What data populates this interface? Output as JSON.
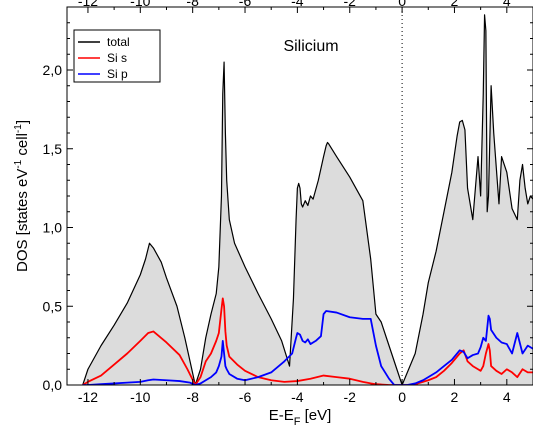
{
  "chart_data": {
    "type": "area",
    "title": "Silicium",
    "xlabel": "E-E",
    "xlabel_sub": "F",
    "xlabel_unit": " [eV]",
    "ylabel": "DOS [states eV",
    "ylabel_sup1": "-1",
    "ylabel_mid": " cell",
    "ylabel_sup2": "-1",
    "ylabel_end": "]",
    "xlim": [
      -12.8,
      5.0
    ],
    "ylim": [
      0.0,
      2.4
    ],
    "x_ticks": [
      "-12",
      "-10",
      "-8",
      "-6",
      "-4",
      "-2",
      "0",
      "2",
      "4"
    ],
    "y_ticks": [
      "0,0",
      "0,5",
      "1,0",
      "1,5",
      "2,0"
    ],
    "fermi_level": 0,
    "grid": false,
    "legend_position": "top-left",
    "series": [
      {
        "name": "total",
        "color": "#000000",
        "fill": "#dcdcdc",
        "x": [
          -12.2,
          -12.0,
          -11.5,
          -11.0,
          -10.5,
          -10.0,
          -9.8,
          -9.65,
          -9.5,
          -9.2,
          -9.0,
          -8.6,
          -8.3,
          -8.1,
          -7.9,
          -7.7,
          -7.5,
          -7.3,
          -7.1,
          -7.0,
          -6.9,
          -6.85,
          -6.8,
          -6.75,
          -6.7,
          -6.6,
          -6.4,
          -6.0,
          -5.5,
          -5.0,
          -4.6,
          -4.3,
          -4.15,
          -4.05,
          -4.0,
          -3.95,
          -3.9,
          -3.85,
          -3.8,
          -3.7,
          -3.6,
          -3.5,
          -3.4,
          -3.2,
          -3.0,
          -2.9,
          -2.85,
          -2.8,
          -2.5,
          -2.0,
          -1.5,
          -1.2,
          -1.0,
          -0.8,
          -0.6,
          -0.4,
          -0.2,
          0.0,
          0.5,
          0.8,
          1.0,
          1.3,
          1.6,
          1.9,
          2.1,
          2.2,
          2.3,
          2.4,
          2.5,
          2.7,
          2.9,
          3.0,
          3.1,
          3.15,
          3.2,
          3.25,
          3.3,
          3.4,
          3.5,
          3.7,
          3.8,
          4.0,
          4.2,
          4.4,
          4.5,
          4.6,
          4.7,
          4.8,
          4.9,
          5.0
        ],
        "y": [
          0.0,
          0.1,
          0.25,
          0.38,
          0.52,
          0.7,
          0.8,
          0.9,
          0.87,
          0.78,
          0.68,
          0.5,
          0.3,
          0.15,
          0.0,
          0.1,
          0.3,
          0.45,
          0.58,
          0.75,
          1.2,
          1.85,
          2.05,
          1.6,
          1.3,
          1.05,
          0.9,
          0.75,
          0.58,
          0.42,
          0.28,
          0.12,
          0.55,
          1.05,
          1.25,
          1.28,
          1.25,
          1.15,
          1.13,
          1.17,
          1.14,
          1.2,
          1.18,
          1.3,
          1.45,
          1.52,
          1.54,
          1.53,
          1.45,
          1.32,
          1.17,
          0.8,
          0.45,
          0.4,
          0.3,
          0.2,
          0.1,
          0.0,
          0.2,
          0.45,
          0.65,
          0.85,
          1.1,
          1.35,
          1.58,
          1.67,
          1.68,
          1.62,
          1.25,
          1.05,
          1.45,
          1.2,
          1.85,
          2.35,
          2.25,
          1.1,
          1.2,
          1.9,
          1.6,
          1.15,
          1.45,
          1.35,
          1.12,
          1.05,
          1.3,
          1.4,
          1.25,
          1.15,
          1.2,
          1.18
        ]
      },
      {
        "name": "Si s",
        "color": "#ff0000",
        "x": [
          -12.2,
          -12.0,
          -11.5,
          -11.0,
          -10.5,
          -10.0,
          -9.7,
          -9.5,
          -9.0,
          -8.5,
          -8.2,
          -7.9,
          -7.7,
          -7.5,
          -7.3,
          -7.1,
          -7.0,
          -6.9,
          -6.85,
          -6.8,
          -6.75,
          -6.7,
          -6.6,
          -6.3,
          -6.0,
          -5.5,
          -5.0,
          -4.5,
          -4.0,
          -3.5,
          -3.0,
          -2.5,
          -2.0,
          -1.5,
          -1.2,
          -1.0,
          -0.5,
          -0.3,
          0.3,
          0.6,
          1.0,
          1.3,
          1.6,
          1.9,
          2.2,
          2.35,
          2.5,
          2.7,
          2.9,
          3.0,
          3.1,
          3.2,
          3.3,
          3.35,
          3.4,
          3.6,
          3.8,
          4.0,
          4.2,
          4.4,
          4.6,
          4.8,
          5.0
        ],
        "y": [
          0.0,
          0.02,
          0.06,
          0.13,
          0.2,
          0.28,
          0.33,
          0.34,
          0.27,
          0.19,
          0.1,
          0.0,
          0.05,
          0.15,
          0.2,
          0.28,
          0.33,
          0.48,
          0.55,
          0.5,
          0.34,
          0.25,
          0.18,
          0.13,
          0.09,
          0.05,
          0.03,
          0.02,
          0.025,
          0.04,
          0.06,
          0.05,
          0.04,
          0.02,
          0.01,
          0.005,
          0.0,
          0.0,
          0.0,
          0.01,
          0.03,
          0.05,
          0.09,
          0.14,
          0.2,
          0.22,
          0.15,
          0.12,
          0.1,
          0.09,
          0.12,
          0.2,
          0.26,
          0.22,
          0.12,
          0.09,
          0.07,
          0.1,
          0.08,
          0.05,
          0.1,
          0.08,
          0.08
        ]
      },
      {
        "name": "Si p",
        "color": "#0000ff",
        "x": [
          -12.2,
          -12.0,
          -11.5,
          -11.0,
          -10.5,
          -10.0,
          -9.7,
          -9.5,
          -9.0,
          -8.5,
          -8.1,
          -7.9,
          -7.7,
          -7.5,
          -7.3,
          -7.1,
          -7.0,
          -6.9,
          -6.85,
          -6.8,
          -6.75,
          -6.7,
          -6.6,
          -6.3,
          -6.0,
          -5.5,
          -5.0,
          -4.5,
          -4.2,
          -4.05,
          -4.0,
          -3.9,
          -3.8,
          -3.7,
          -3.6,
          -3.5,
          -3.3,
          -3.1,
          -3.0,
          -2.9,
          -2.5,
          -2.0,
          -1.5,
          -1.2,
          -1.0,
          -0.8,
          -0.5,
          -0.3,
          0.2,
          0.5,
          0.8,
          1.0,
          1.3,
          1.6,
          1.9,
          2.2,
          2.35,
          2.5,
          2.7,
          2.9,
          3.0,
          3.1,
          3.2,
          3.3,
          3.35,
          3.4,
          3.6,
          3.8,
          4.0,
          4.2,
          4.4,
          4.6,
          4.8,
          5.0
        ],
        "y": [
          0.0,
          0.0,
          0.005,
          0.01,
          0.015,
          0.02,
          0.03,
          0.035,
          0.03,
          0.025,
          0.015,
          0.0,
          0.01,
          0.03,
          0.05,
          0.08,
          0.12,
          0.18,
          0.28,
          0.2,
          0.12,
          0.1,
          0.07,
          0.04,
          0.03,
          0.05,
          0.08,
          0.15,
          0.2,
          0.3,
          0.33,
          0.32,
          0.28,
          0.27,
          0.29,
          0.26,
          0.28,
          0.31,
          0.45,
          0.47,
          0.46,
          0.43,
          0.42,
          0.42,
          0.25,
          0.12,
          0.04,
          0.0,
          0.0,
          0.01,
          0.03,
          0.05,
          0.08,
          0.12,
          0.16,
          0.22,
          0.21,
          0.17,
          0.19,
          0.2,
          0.24,
          0.3,
          0.28,
          0.44,
          0.42,
          0.35,
          0.3,
          0.27,
          0.26,
          0.2,
          0.33,
          0.2,
          0.25,
          0.23
        ]
      }
    ]
  }
}
